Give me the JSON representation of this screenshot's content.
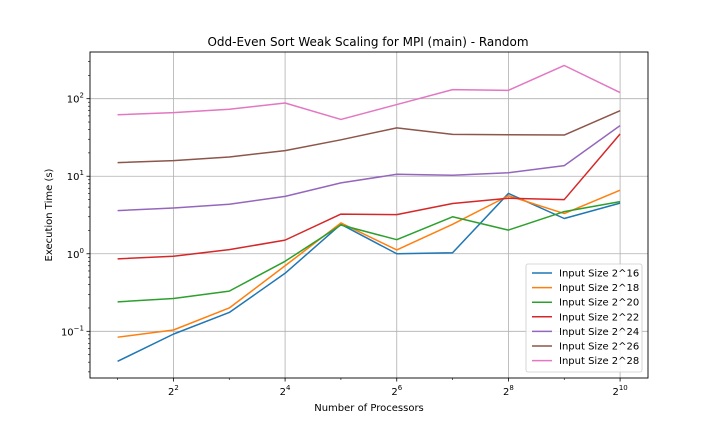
{
  "chart_data": {
    "type": "line",
    "title": "Odd-Even Sort Weak Scaling for MPI (main) - Random",
    "xlabel": "Number of Processors",
    "ylabel": "Execution Time (s)",
    "xscale": "log2",
    "yscale": "log10",
    "xlim": [
      1.42,
      1448
    ],
    "ylim": [
      0.025,
      400
    ],
    "grid": true,
    "legend_position": "lower-right",
    "x": [
      2,
      4,
      8,
      16,
      32,
      64,
      128,
      256,
      512,
      1024
    ],
    "x_ticks": [
      {
        "value": 4,
        "base": "2",
        "exp": "2"
      },
      {
        "value": 16,
        "base": "2",
        "exp": "4"
      },
      {
        "value": 64,
        "base": "2",
        "exp": "6"
      },
      {
        "value": 256,
        "base": "2",
        "exp": "8"
      },
      {
        "value": 1024,
        "base": "2",
        "exp": "10"
      }
    ],
    "y_ticks": [
      {
        "value": 0.1,
        "base": "10",
        "exp": "−1"
      },
      {
        "value": 1,
        "base": "10",
        "exp": "0"
      },
      {
        "value": 10,
        "base": "10",
        "exp": "1"
      },
      {
        "value": 100,
        "base": "10",
        "exp": "2"
      }
    ],
    "series": [
      {
        "name": "Input Size 2^16",
        "color": "#1f77b4",
        "values": [
          0.041,
          0.092,
          0.175,
          0.56,
          2.4,
          1.0,
          1.03,
          6.0,
          2.85,
          4.5
        ]
      },
      {
        "name": "Input Size 2^18",
        "color": "#ff7f0e",
        "values": [
          0.084,
          0.104,
          0.2,
          0.7,
          2.5,
          1.12,
          2.4,
          5.6,
          3.3,
          6.6
        ]
      },
      {
        "name": "Input Size 2^20",
        "color": "#2ca02c",
        "values": [
          0.24,
          0.265,
          0.33,
          0.8,
          2.35,
          1.52,
          3.0,
          2.02,
          3.5,
          4.7
        ]
      },
      {
        "name": "Input Size 2^22",
        "color": "#d62728",
        "values": [
          0.86,
          0.93,
          1.13,
          1.5,
          3.25,
          3.2,
          4.45,
          5.2,
          5.0,
          35.0
        ]
      },
      {
        "name": "Input Size 2^24",
        "color": "#9467bd",
        "values": [
          3.6,
          3.9,
          4.35,
          5.5,
          8.2,
          10.6,
          10.3,
          11.1,
          13.7,
          45.0
        ]
      },
      {
        "name": "Input Size 2^26",
        "color": "#8c564b",
        "values": [
          15.0,
          15.9,
          17.7,
          21.4,
          29.5,
          42.0,
          34.6,
          34.3,
          34.0,
          70.0
        ]
      },
      {
        "name": "Input Size 2^28",
        "color": "#e377c2",
        "values": [
          62.0,
          66.0,
          73.0,
          88.0,
          54.0,
          84.0,
          131.0,
          128.0,
          268.0,
          120.0
        ]
      }
    ]
  }
}
